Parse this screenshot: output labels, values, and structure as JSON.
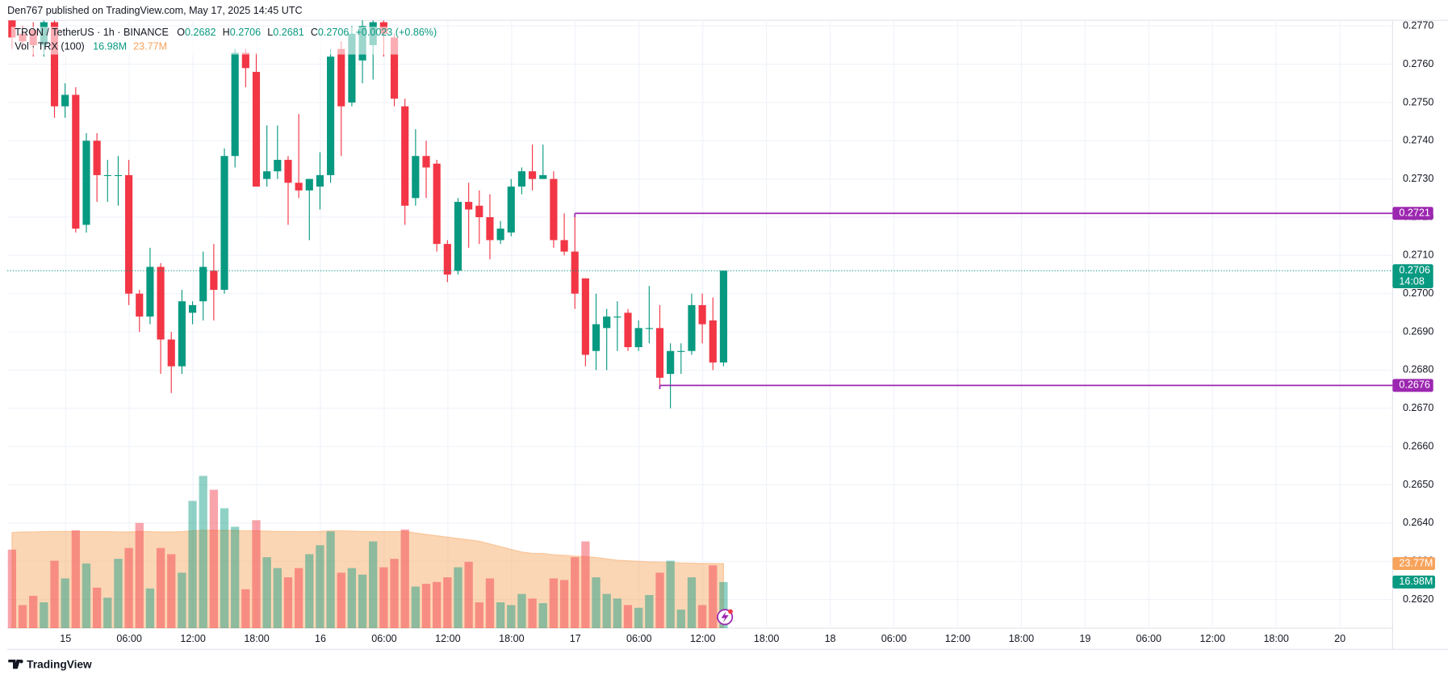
{
  "header": "Den767 published on TradingView.com, May 17, 2025 14:45 UTC",
  "footer": "TradingView",
  "chart_data": {
    "type": "candlestick",
    "legend": {
      "symbol": "TRON / TetherUS · 1h · BINANCE",
      "fields": [
        {
          "key": "O",
          "value": "0.2682"
        },
        {
          "key": "H",
          "value": "0.2706"
        },
        {
          "key": "L",
          "value": "0.2681"
        },
        {
          "key": "C",
          "value": "0.2706"
        }
      ],
      "change": "+0.0023 (+0.86%)"
    },
    "volume_legend": {
      "name": "Vol · TRX (100)",
      "volume": "16.98M",
      "ma": "23.77M"
    },
    "up_color": "#089981",
    "down_color": "#f23645",
    "ma_color": "#f7a35c",
    "level_color": "#9c27b0",
    "open": [
      0.2772,
      0.2768,
      0.2769,
      0.2765,
      0.2771,
      0.2749,
      0.2752,
      0.2718,
      0.274,
      0.2731,
      0.2731,
      0.2731,
      0.27,
      0.2694,
      0.2707,
      0.2688,
      0.2681,
      0.2695,
      0.2698,
      0.2706,
      0.2701,
      0.2736,
      0.2763,
      0.2758,
      0.273,
      0.2732,
      0.2735,
      0.2729,
      0.2727,
      0.2728,
      0.2731,
      0.2764,
      0.275,
      0.2761,
      0.2765,
      0.2771,
      0.2767,
      0.2749,
      0.2725,
      0.2736,
      0.2734,
      0.2713,
      0.2706,
      0.2724,
      0.2723,
      0.272,
      0.2714,
      0.2716,
      0.2728,
      0.2732,
      0.273,
      0.273,
      0.2714,
      0.2711,
      0.2704,
      0.2685,
      0.2691,
      0.2694,
      0.2695,
      0.2686,
      0.2691,
      0.2691,
      0.2679,
      0.2685,
      0.2685,
      0.2697,
      0.2693,
      0.2682
    ],
    "high": [
      0.2775,
      0.277,
      0.2771,
      0.2773,
      0.2773,
      0.2755,
      0.2754,
      0.2742,
      0.2742,
      0.2735,
      0.2736,
      0.2735,
      0.2701,
      0.2712,
      0.2708,
      0.269,
      0.2701,
      0.2698,
      0.2711,
      0.2713,
      0.2738,
      0.2764,
      0.2764,
      0.2763,
      0.2744,
      0.2744,
      0.2736,
      0.2747,
      0.273,
      0.2737,
      0.2764,
      0.2766,
      0.277,
      0.2772,
      0.2773,
      0.2772,
      0.2768,
      0.2751,
      0.2743,
      0.274,
      0.2735,
      0.2714,
      0.2725,
      0.2729,
      0.2727,
      0.2726,
      0.2719,
      0.273,
      0.2733,
      0.2739,
      0.2739,
      0.2732,
      0.2721,
      0.2721,
      0.2704,
      0.27,
      0.2696,
      0.2698,
      0.2696,
      0.2693,
      0.2702,
      0.2697,
      0.2687,
      0.2687,
      0.27,
      0.27,
      0.2699,
      0.2706
    ],
    "low": [
      0.2764,
      0.2764,
      0.2762,
      0.2762,
      0.2746,
      0.2746,
      0.2716,
      0.2716,
      0.2724,
      0.2724,
      0.2723,
      0.2697,
      0.269,
      0.2692,
      0.2679,
      0.2674,
      0.2679,
      0.2692,
      0.2693,
      0.2693,
      0.27,
      0.2733,
      0.2754,
      0.2728,
      0.2728,
      0.273,
      0.2718,
      0.2725,
      0.2714,
      0.2722,
      0.2729,
      0.2736,
      0.2749,
      0.2755,
      0.2756,
      0.2762,
      0.2749,
      0.2718,
      0.2723,
      0.2725,
      0.2711,
      0.2703,
      0.2705,
      0.2712,
      0.2713,
      0.2709,
      0.2713,
      0.2715,
      0.2726,
      0.2727,
      0.273,
      0.2712,
      0.271,
      0.2696,
      0.2681,
      0.268,
      0.268,
      0.2685,
      0.2685,
      0.2685,
      0.2687,
      0.2676,
      0.267,
      0.2679,
      0.2684,
      0.2687,
      0.268,
      0.2681
    ],
    "close": [
      0.2767,
      0.2766,
      0.2765,
      0.2771,
      0.2749,
      0.2752,
      0.2717,
      0.274,
      0.2731,
      0.2731,
      0.2731,
      0.27,
      0.2694,
      0.2707,
      0.2688,
      0.2681,
      0.2698,
      0.2697,
      0.2707,
      0.2701,
      0.2736,
      0.2763,
      0.2759,
      0.2728,
      0.2732,
      0.2735,
      0.2729,
      0.2727,
      0.273,
      0.2731,
      0.2762,
      0.2749,
      0.2768,
      0.277,
      0.2771,
      0.2768,
      0.2751,
      0.2723,
      0.2736,
      0.2733,
      0.2713,
      0.2705,
      0.2724,
      0.2722,
      0.272,
      0.2714,
      0.2717,
      0.2728,
      0.2732,
      0.273,
      0.2731,
      0.2714,
      0.2711,
      0.27,
      0.2684,
      0.2692,
      0.2694,
      0.2694,
      0.2686,
      0.2691,
      0.2691,
      0.2678,
      0.2685,
      0.2685,
      0.2697,
      0.2692,
      0.2682,
      0.2706
    ],
    "volume": [
      28.9,
      8.5,
      11.9,
      9.5,
      24.8,
      18.3,
      36,
      23.8,
      14.9,
      11.2,
      25.5,
      29.5,
      38.7,
      14.6,
      29.5,
      27.2,
      20.4,
      46.8,
      56,
      50.9,
      44.1,
      37.3,
      14.3,
      39.7,
      26.1,
      22.1,
      18.7,
      22.1,
      27.2,
      30.5,
      35.6,
      20.4,
      22.1,
      19.7,
      31.9,
      22.4,
      25.5,
      36.3,
      15.3,
      16.3,
      17,
      18.7,
      22.4,
      24.4,
      9.5,
      18.3,
      9.5,
      8.5,
      12.6,
      10.9,
      9.2,
      18.3,
      17.7,
      26.1,
      31.9,
      18.7,
      12.6,
      10.9,
      8.5,
      7.5,
      12.2,
      20.4,
      24.8,
      6.8,
      18.7,
      8.5,
      23.1,
      16.98
    ],
    "volume_ma": [
      35.2,
      35.4,
      35.4,
      35.5,
      35.6,
      35.6,
      35.6,
      35.5,
      35.5,
      35.5,
      35.4,
      35.4,
      35.6,
      35.5,
      35.4,
      35.4,
      35.5,
      35.8,
      36.0,
      36.0,
      36.0,
      35.9,
      35.8,
      35.8,
      35.7,
      35.6,
      35.6,
      35.5,
      35.5,
      35.6,
      35.8,
      35.8,
      35.7,
      35.6,
      35.6,
      35.5,
      35.5,
      35.6,
      35.0,
      34.5,
      34.0,
      33.5,
      33.0,
      32.5,
      32.0,
      31.0,
      30.0,
      29.0,
      28.0,
      27.5,
      27.5,
      27.0,
      26.8,
      26.5,
      26.3,
      26.0,
      25.5,
      25.0,
      24.8,
      24.6,
      24.4,
      24.3,
      24.2,
      24.0,
      23.9,
      23.8,
      23.8,
      23.77
    ],
    "ylim": [
      0.26125,
      0.27768
    ],
    "volume_lim": [
      0,
      231
    ],
    "yticks": [
      {
        "value": 0.262,
        "label": "0.2620"
      },
      {
        "value": 0.263,
        "label": "0.2630"
      },
      {
        "value": 0.264,
        "label": "0.2640"
      },
      {
        "value": 0.265,
        "label": "0.2650"
      },
      {
        "value": 0.266,
        "label": "0.2660"
      },
      {
        "value": 0.267,
        "label": "0.2670"
      },
      {
        "value": 0.268,
        "label": "0.2680"
      },
      {
        "value": 0.269,
        "label": "0.2690"
      },
      {
        "value": 0.27,
        "label": "0.2700"
      },
      {
        "value": 0.271,
        "label": "0.2710"
      },
      {
        "value": 0.272,
        "label": "0.2720"
      },
      {
        "value": 0.273,
        "label": "0.2730"
      },
      {
        "value": 0.274,
        "label": "0.2740"
      },
      {
        "value": 0.275,
        "label": "0.2750"
      },
      {
        "value": 0.276,
        "label": "0.2760"
      },
      {
        "value": 0.277,
        "label": "0.2770"
      }
    ],
    "xtick_labels": [
      "15",
      "06:00",
      "12:00",
      "18:00",
      "16",
      "06:00",
      "12:00",
      "18:00",
      "17",
      "06:00",
      "12:00",
      "18:00",
      "18",
      "06:00",
      "12:00",
      "18:00",
      "19",
      "06:00",
      "12:00",
      "18:00",
      "20"
    ],
    "levels": [
      {
        "value": 0.2721,
        "label": "0.2721",
        "from": 53
      },
      {
        "value": 0.2676,
        "label": "0.2676",
        "from": 61
      }
    ],
    "last_price": {
      "value": 0.2706,
      "label": "0.2706",
      "countdown": "14:08"
    },
    "volume_badges": {
      "ma": {
        "value": 23.77,
        "label": "23.77M"
      },
      "volume": {
        "value": 16.98,
        "label": "16.98M"
      }
    },
    "grid": true
  }
}
